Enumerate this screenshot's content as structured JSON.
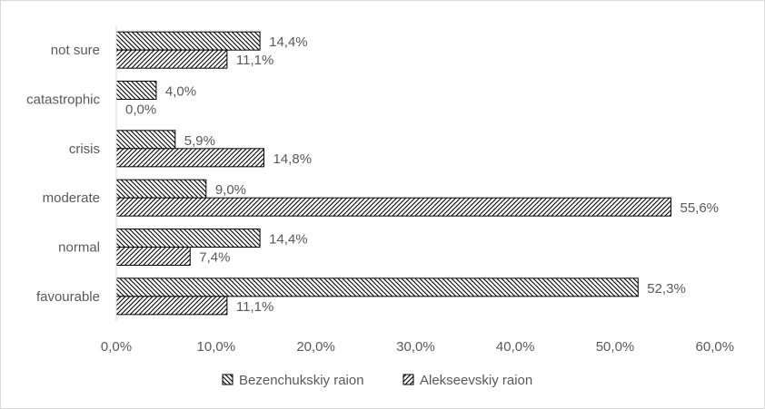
{
  "chart_data": {
    "type": "bar",
    "orientation": "horizontal",
    "categories": [
      "not sure",
      "catastrophic",
      "crisis",
      "moderate",
      "normal",
      "favourable"
    ],
    "series": [
      {
        "name": "Bezenchukskiy raion",
        "values": [
          14.4,
          4.0,
          5.9,
          9.0,
          14.4,
          52.3
        ],
        "labels": [
          "14,4%",
          "4,0%",
          "5,9%",
          "9,0%",
          "14,4%",
          "52,3%"
        ],
        "pattern": "hatch-backward"
      },
      {
        "name": "Alekseevskiy raion",
        "values": [
          11.1,
          0.0,
          14.8,
          55.6,
          7.4,
          11.1
        ],
        "labels": [
          "11,1%",
          "0,0%",
          "14,8%",
          "55,6%",
          "7,4%",
          "11,1%"
        ],
        "pattern": "hatch-forward"
      }
    ],
    "xlim": [
      0,
      60
    ],
    "xticks": [
      0,
      10,
      20,
      30,
      40,
      50,
      60
    ],
    "xtick_labels": [
      "0,0%",
      "10,0%",
      "20,0%",
      "30,0%",
      "40,0%",
      "50,0%",
      "60,0%"
    ],
    "grid": false,
    "legend_position": "bottom",
    "colors": {
      "text": "#595959",
      "bar_fill": "#ffffff",
      "hatch": "#000000",
      "axis": "#d9d9d9"
    }
  }
}
